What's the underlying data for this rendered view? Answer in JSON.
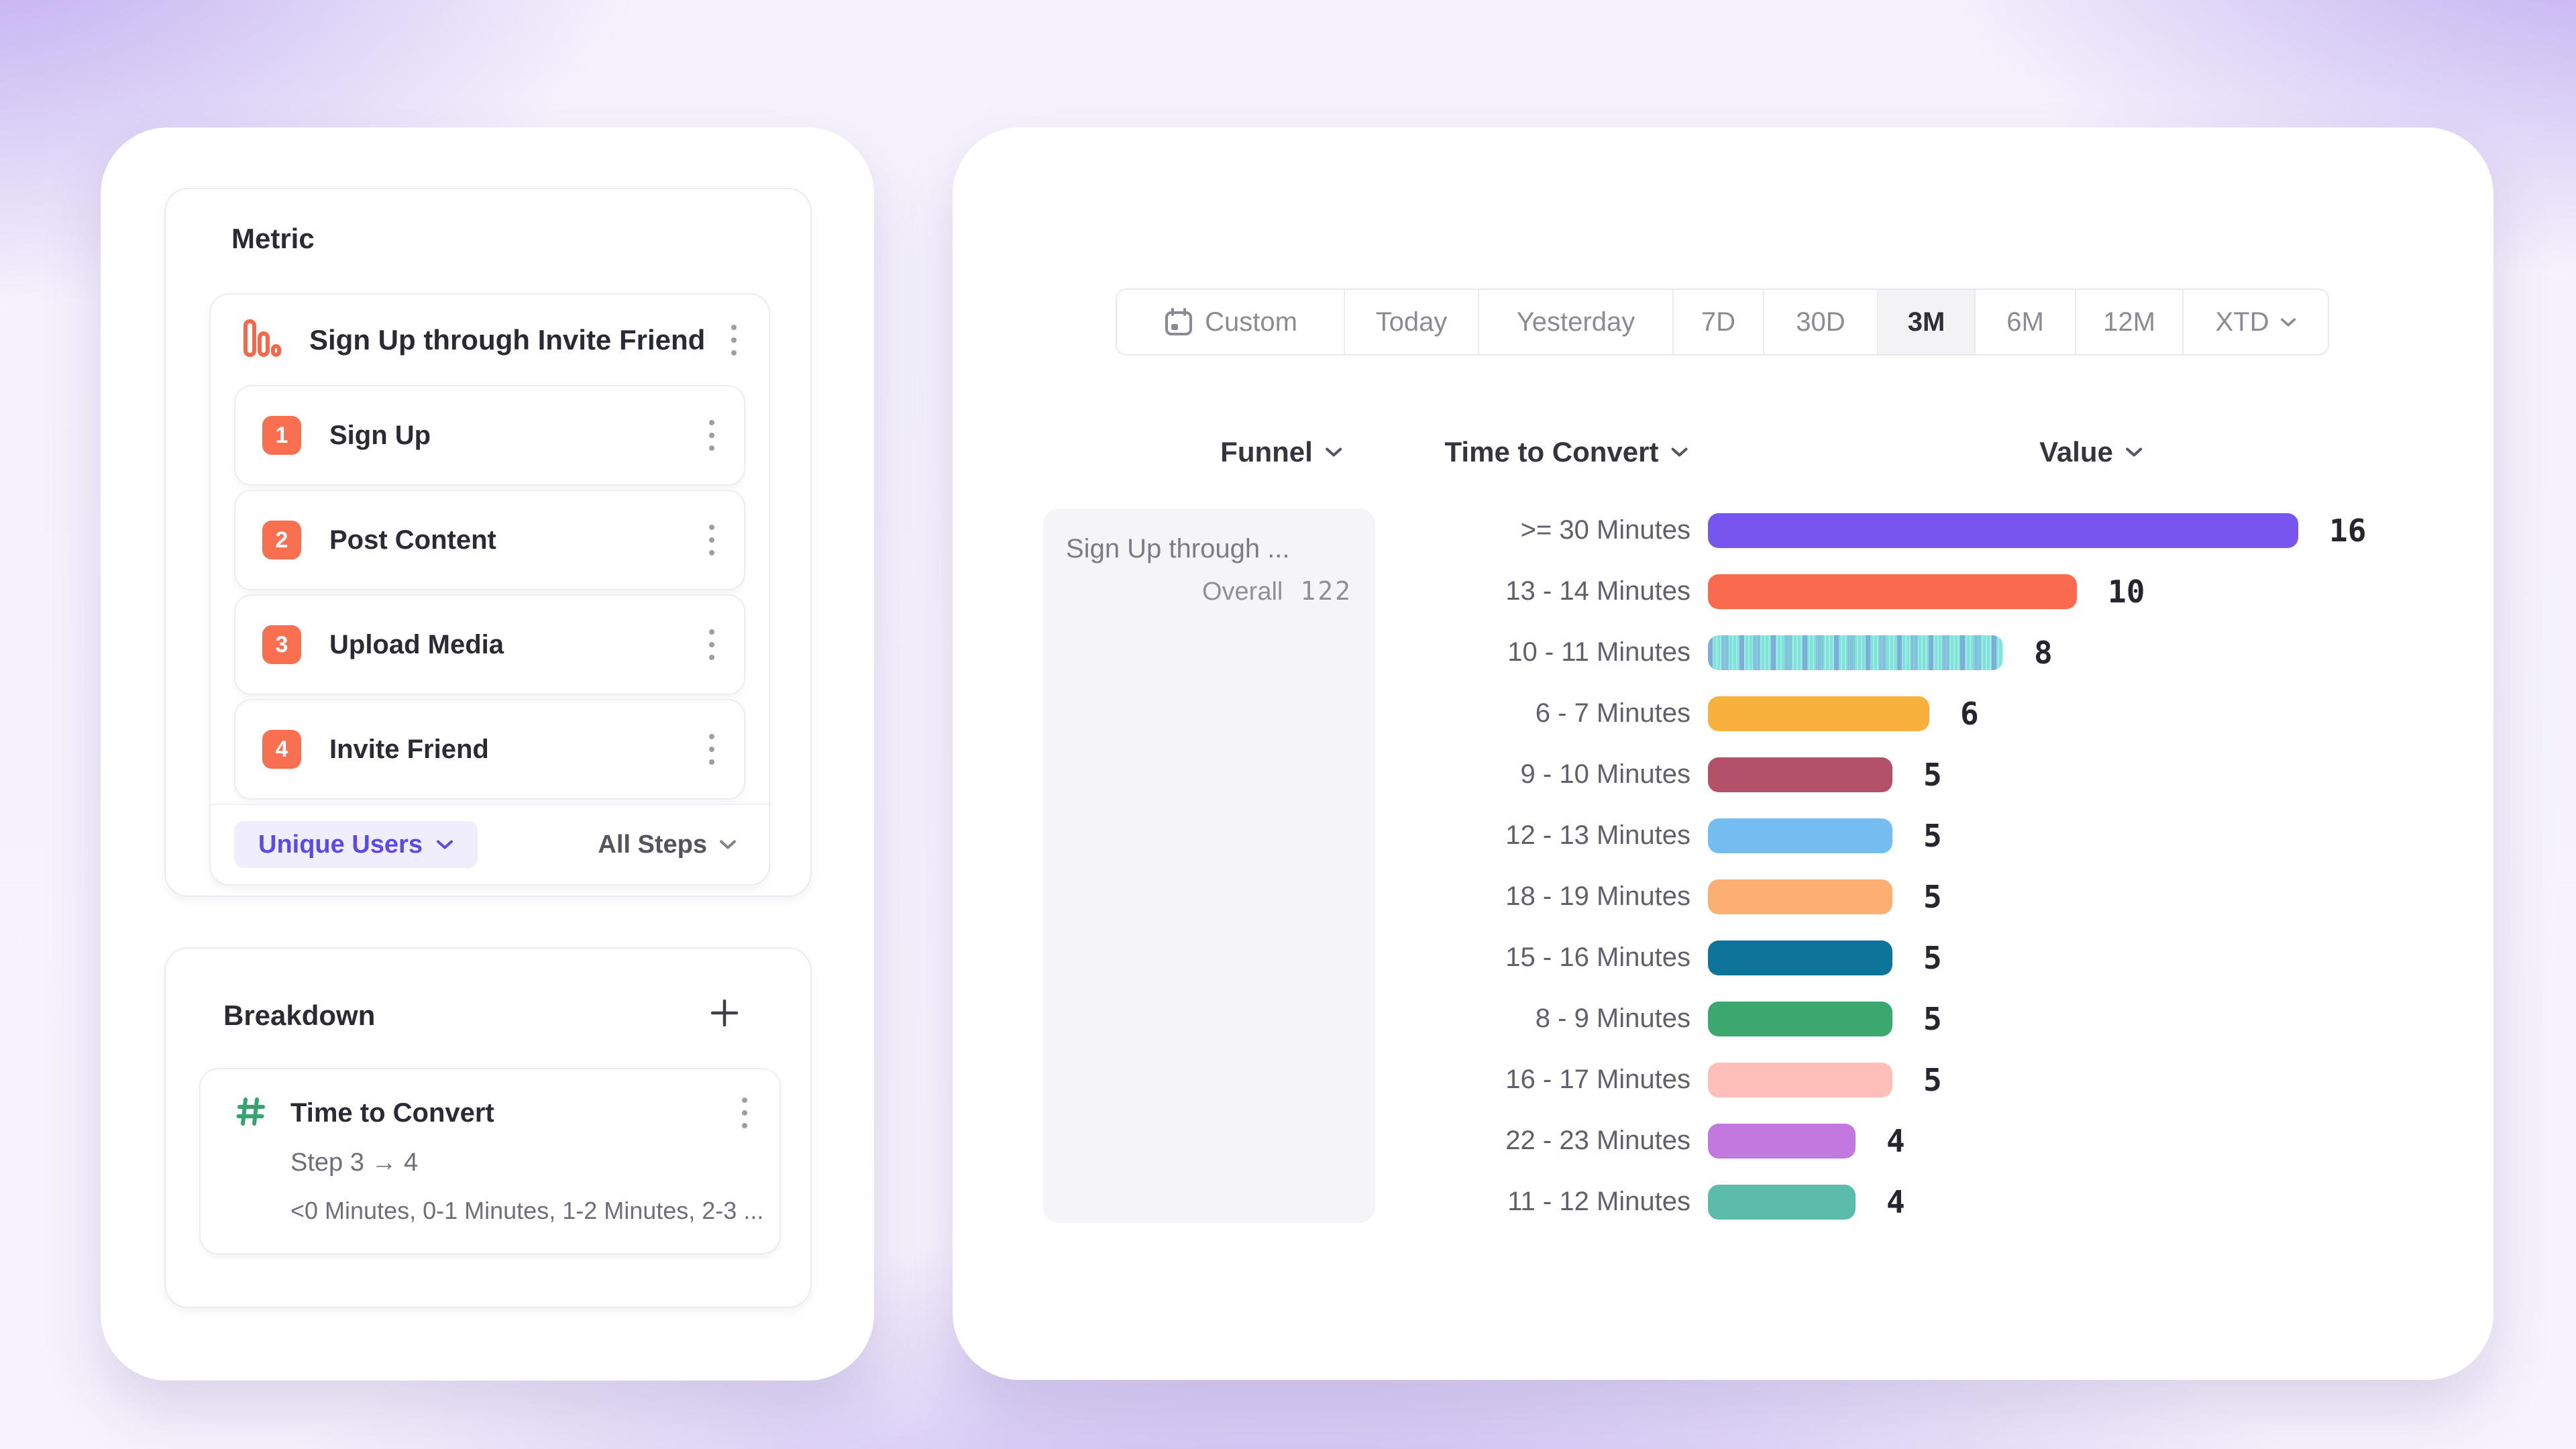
{
  "colors": {
    "accent_purple": "#5A4BE7",
    "badge_orange": "#F8704F",
    "metric_icon_orange": "#F4694B",
    "breakdown_icon_green": "#36A470",
    "selected_segment_bg": "#F3F3F5",
    "funnel_card_bg": "#F5F5F7"
  },
  "left_panel": {
    "metric_section": {
      "title": "Metric",
      "funnel": {
        "title": "Sign Up through Invite Friend",
        "steps": [
          {
            "number": "1",
            "label": "Sign Up"
          },
          {
            "number": "2",
            "label": "Post Content"
          },
          {
            "number": "3",
            "label": "Upload Media"
          },
          {
            "number": "4",
            "label": "Invite Friend"
          }
        ],
        "measurement_label": "Unique Users",
        "steps_filter_label": "All Steps"
      }
    },
    "breakdown_section": {
      "title": "Breakdown",
      "property": {
        "name": "Time to Convert",
        "step_range": "Step 3 → 4",
        "buckets_preview": "<0 Minutes, 0-1 Minutes, 1-2 Minutes, 2-3 ..."
      }
    }
  },
  "right_panel": {
    "date_range": {
      "selected": "3M",
      "options": [
        {
          "label": "Custom",
          "icon": "calendar"
        },
        {
          "label": "Today"
        },
        {
          "label": "Yesterday"
        },
        {
          "label": "7D"
        },
        {
          "label": "30D"
        },
        {
          "label": "3M"
        },
        {
          "label": "6M"
        },
        {
          "label": "12M"
        },
        {
          "label": "XTD",
          "chevron": true
        }
      ]
    },
    "columns": {
      "funnel": "Funnel",
      "time_to_convert": "Time to Convert",
      "value": "Value"
    },
    "funnel_card": {
      "title": "Sign Up through ...",
      "overall_label": "Overall",
      "overall_value": "122"
    }
  },
  "chart_data": {
    "type": "bar",
    "orientation": "horizontal",
    "title": "Time to Convert distribution",
    "categories": [
      ">= 30 Minutes",
      "13 - 14 Minutes",
      "10 - 11 Minutes",
      "6 - 7 Minutes",
      "9 - 10 Minutes",
      "12 - 13 Minutes",
      "18 - 19 Minutes",
      "15 - 16 Minutes",
      "8 - 9 Minutes",
      "16 - 17 Minutes",
      "22 - 23 Minutes",
      "11 - 12 Minutes"
    ],
    "values": [
      16,
      10,
      8,
      6,
      5,
      5,
      5,
      5,
      5,
      5,
      4,
      4
    ],
    "colors": [
      "#7756F0",
      "#F96A4F",
      "#7EE3D9",
      "#F9B13D",
      "#B25167",
      "#74BDF0",
      "#FCAE73",
      "#0F7499",
      "#3AA86F",
      "#FDBFB7",
      "#C378E0",
      "#5BBCAC"
    ],
    "patterned_index": 2,
    "value_labels": true,
    "xlim": [
      0,
      16
    ],
    "grid": false,
    "legend": false
  }
}
